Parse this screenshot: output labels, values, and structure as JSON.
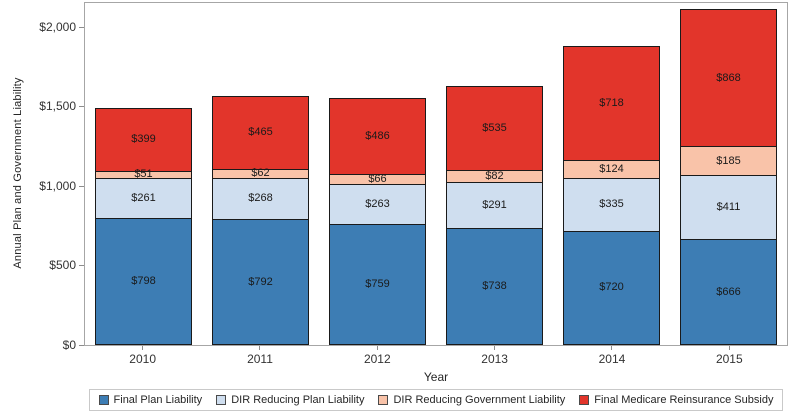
{
  "chart_data": {
    "type": "bar",
    "stacked": true,
    "title": "",
    "xlabel": "Year",
    "ylabel": "Annual Plan and Government Liability",
    "categories": [
      "2010",
      "2011",
      "2012",
      "2013",
      "2014",
      "2015"
    ],
    "series": [
      {
        "name": "Final Plan Liability",
        "color": "#3d7db4",
        "values": [
          798,
          792,
          759,
          738,
          720,
          666
        ]
      },
      {
        "name": "DIR Reducing Plan Liability",
        "color": "#cfdeef",
        "values": [
          261,
          268,
          263,
          291,
          335,
          411
        ]
      },
      {
        "name": "DIR Reducing Government Liability",
        "color": "#f9c3a9",
        "values": [
          51,
          62,
          66,
          82,
          124,
          185
        ]
      },
      {
        "name": "Final Medicare Reinsurance Subsidy",
        "color": "#e2352b",
        "values": [
          399,
          465,
          486,
          535,
          718,
          868
        ]
      }
    ],
    "totals": [
      1509,
      1587,
      1574,
      1646,
      1897,
      2130
    ],
    "value_label_prefix": "$",
    "y_ticks": [
      "$0",
      "$500",
      "$1,000",
      "$1,500",
      "$2,000"
    ],
    "y_tick_values": [
      0,
      500,
      1000,
      1500,
      2000
    ],
    "ylim": [
      0,
      2157
    ],
    "grid": false,
    "legend_position": "bottom",
    "colors": {
      "axis_frame": "#a6a6a6",
      "tick": "#8c8c8c",
      "segment_border": "#1a1a1a",
      "label_text": "#1a1a1a"
    }
  }
}
